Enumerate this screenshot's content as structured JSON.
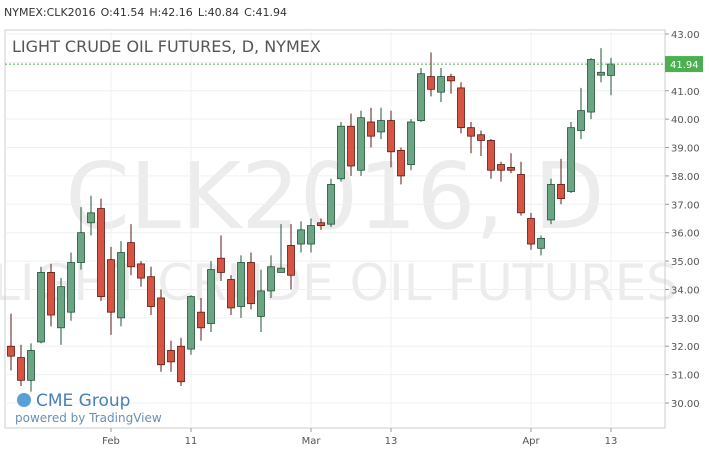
{
  "header": {
    "symbol": "NYMEX:CLK2016",
    "open": "O:",
    "high": "H:",
    "low": "L:",
    "close": "C:"
  },
  "logo": {
    "name": "CME Group",
    "powered": "powered by TradingView"
  },
  "chart_data": {
    "type": "candlestick",
    "title": "LIGHT CRUDE OIL FUTURES, D, NYMEX",
    "watermark_symbol": "CLK2016, D",
    "watermark_description": "LIGHT CRUDE OIL FUTURES",
    "categories": [
      null,
      null,
      null,
      null,
      null,
      null,
      null,
      null,
      null,
      null,
      "Feb",
      null,
      null,
      null,
      null,
      null,
      null,
      null,
      "11",
      null,
      null,
      null,
      null,
      null,
      null,
      null,
      null,
      null,
      null,
      null,
      "Mar",
      null,
      null,
      null,
      null,
      null,
      null,
      null,
      "13",
      null,
      null,
      null,
      null,
      null,
      null,
      null,
      null,
      null,
      null,
      null,
      null,
      null,
      "Apr",
      null,
      null,
      null,
      null,
      null,
      null,
      null,
      "13"
    ],
    "open": [
      32.0,
      31.6,
      30.8,
      32.15,
      34.6,
      32.65,
      33.2,
      34.95,
      36.35,
      36.85,
      35.05,
      33.0,
      35.65,
      34.9,
      34.45,
      33.7,
      31.85,
      32.0,
      31.9,
      33.2,
      32.8,
      35.1,
      34.35,
      33.4,
      34.95,
      33.05,
      33.95,
      34.6,
      35.55,
      35.6,
      35.6,
      36.35,
      36.3,
      37.9,
      39.75,
      38.2,
      39.9,
      39.55,
      39.95,
      38.9,
      38.4,
      39.95,
      41.5,
      40.95,
      41.5,
      41.1,
      39.7,
      39.45,
      39.25,
      38.4,
      38.3,
      38.05,
      36.5,
      35.45,
      36.45,
      37.7,
      37.45,
      39.6,
      40.25,
      41.55,
      41.54
    ],
    "high": [
      33.15,
      32.05,
      32.1,
      34.8,
      34.9,
      34.4,
      35.3,
      36.9,
      37.3,
      37.2,
      35.5,
      35.7,
      36.3,
      35.0,
      34.8,
      34.0,
      32.2,
      32.3,
      33.8,
      33.7,
      35.0,
      35.9,
      34.5,
      35.2,
      35.3,
      34.7,
      35.2,
      36.3,
      36.3,
      36.4,
      36.5,
      36.5,
      37.9,
      39.9,
      40.2,
      40.3,
      40.4,
      40.4,
      40.3,
      39.0,
      40.0,
      41.8,
      42.35,
      41.8,
      41.6,
      41.3,
      39.9,
      39.6,
      39.3,
      38.5,
      38.8,
      38.5,
      36.7,
      35.9,
      37.9,
      38.6,
      39.9,
      41.1,
      42.15,
      42.5,
      42.16
    ],
    "low": [
      31.15,
      30.6,
      30.4,
      32.1,
      32.7,
      32.05,
      32.9,
      34.7,
      35.9,
      33.6,
      32.4,
      32.7,
      34.5,
      34.1,
      33.1,
      31.1,
      31.1,
      30.6,
      31.7,
      32.2,
      32.5,
      34.3,
      33.1,
      33.0,
      33.3,
      32.5,
      33.7,
      34.6,
      34.0,
      35.3,
      35.3,
      36.1,
      36.2,
      37.8,
      38.0,
      38.0,
      39.0,
      39.3,
      38.3,
      37.7,
      38.2,
      39.9,
      40.8,
      40.6,
      40.9,
      39.5,
      38.8,
      38.7,
      37.9,
      37.8,
      38.1,
      36.6,
      35.4,
      35.2,
      36.3,
      37.0,
      37.4,
      39.3,
      40.0,
      41.3,
      40.84
    ],
    "close": [
      31.65,
      30.8,
      31.85,
      34.6,
      33.1,
      34.1,
      34.95,
      36.0,
      36.7,
      33.75,
      33.2,
      35.3,
      34.8,
      34.4,
      33.4,
      31.35,
      31.45,
      30.75,
      33.75,
      32.65,
      34.7,
      34.6,
      33.35,
      34.95,
      33.5,
      33.95,
      34.8,
      34.75,
      34.5,
      36.1,
      36.25,
      36.25,
      37.7,
      39.75,
      38.35,
      40.05,
      39.4,
      39.95,
      38.85,
      38.0,
      39.9,
      41.6,
      41.05,
      41.5,
      41.35,
      39.7,
      39.4,
      39.25,
      38.2,
      38.2,
      38.2,
      36.7,
      35.6,
      35.8,
      37.7,
      37.2,
      39.7,
      40.3,
      42.1,
      41.65,
      41.94
    ],
    "up_color": "#6ba583",
    "down_color": "#d75442",
    "last_price_color": "#4caf50",
    "ylim": [
      29.12,
      43.14
    ],
    "yticks": [
      {
        "value": 30,
        "label": "30.00"
      },
      {
        "value": 31,
        "label": "31.00"
      },
      {
        "value": 32,
        "label": "32.00"
      },
      {
        "value": 33,
        "label": "33.00"
      },
      {
        "value": 34,
        "label": "34.00"
      },
      {
        "value": 35,
        "label": "35.00"
      },
      {
        "value": 36,
        "label": "36.00"
      },
      {
        "value": 37,
        "label": "37.00"
      },
      {
        "value": 38,
        "label": "38.00"
      },
      {
        "value": 39,
        "label": "39.00"
      },
      {
        "value": 40,
        "label": "40.00"
      },
      {
        "value": 41,
        "label": "41.00"
      },
      {
        "value": 42,
        "label": "42.00"
      },
      {
        "value": 43,
        "label": "43.00"
      }
    ],
    "grid": true
  }
}
